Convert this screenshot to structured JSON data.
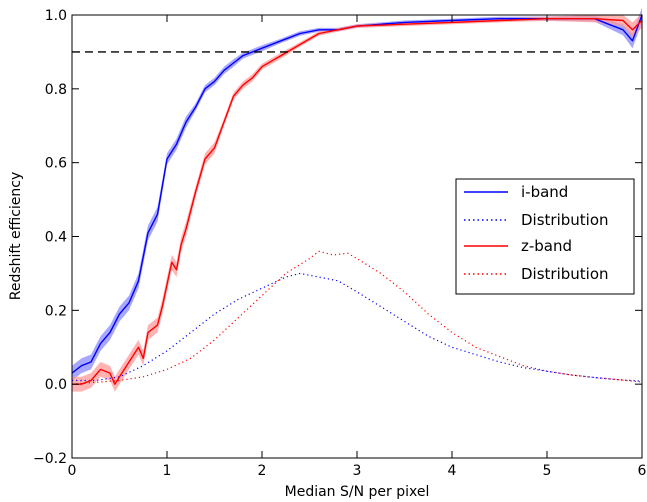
{
  "chart_data": {
    "type": "line",
    "xlabel": "Median S/N per pixel",
    "ylabel": "Redshift efficiency",
    "xlim": [
      0,
      6
    ],
    "ylim": [
      -0.2,
      1.0
    ],
    "x_ticks": [
      "0",
      "1",
      "2",
      "3",
      "4",
      "5",
      "6"
    ],
    "y_ticks": [
      "−0.2",
      "0.0",
      "0.2",
      "0.4",
      "0.6",
      "0.8",
      "1.0"
    ],
    "grid": false,
    "legend_placement": "center-right",
    "reference_line": {
      "y": 0.9,
      "style": "dashed",
      "color": "#000000"
    },
    "series": [
      {
        "name": "i-band",
        "style": "solid",
        "color": "#0000ff",
        "band_color": "#8a8aff",
        "x": [
          0.0,
          0.1,
          0.2,
          0.3,
          0.4,
          0.5,
          0.6,
          0.7,
          0.8,
          0.9,
          1.0,
          1.1,
          1.2,
          1.3,
          1.4,
          1.5,
          1.6,
          1.7,
          1.8,
          1.9,
          2.0,
          2.2,
          2.4,
          2.6,
          2.8,
          3.0,
          3.5,
          4.0,
          4.5,
          5.0,
          5.5,
          5.8,
          5.9,
          6.0
        ],
        "y": [
          0.03,
          0.05,
          0.06,
          0.11,
          0.14,
          0.19,
          0.22,
          0.28,
          0.41,
          0.46,
          0.61,
          0.65,
          0.71,
          0.75,
          0.8,
          0.82,
          0.85,
          0.87,
          0.89,
          0.9,
          0.91,
          0.93,
          0.95,
          0.96,
          0.96,
          0.97,
          0.98,
          0.985,
          0.99,
          0.99,
          0.99,
          0.96,
          0.93,
          1.0
        ],
        "err": [
          0.02,
          0.02,
          0.02,
          0.02,
          0.02,
          0.02,
          0.02,
          0.02,
          0.02,
          0.02,
          0.015,
          0.015,
          0.015,
          0.01,
          0.01,
          0.01,
          0.01,
          0.01,
          0.008,
          0.008,
          0.008,
          0.006,
          0.006,
          0.005,
          0.005,
          0.005,
          0.005,
          0.005,
          0.005,
          0.006,
          0.008,
          0.015,
          0.02,
          0.02
        ]
      },
      {
        "name": "Distribution",
        "style": "dotted",
        "color": "#0000ff",
        "x": [
          0.0,
          0.25,
          0.5,
          0.75,
          1.0,
          1.25,
          1.5,
          1.75,
          2.0,
          2.25,
          2.4,
          2.6,
          2.8,
          3.0,
          3.25,
          3.5,
          3.75,
          4.0,
          4.25,
          4.5,
          4.75,
          5.0,
          5.25,
          5.5,
          5.75,
          6.0
        ],
        "y": [
          0.01,
          0.01,
          0.02,
          0.05,
          0.09,
          0.14,
          0.19,
          0.23,
          0.26,
          0.29,
          0.3,
          0.29,
          0.28,
          0.25,
          0.21,
          0.17,
          0.13,
          0.1,
          0.08,
          0.06,
          0.045,
          0.035,
          0.025,
          0.018,
          0.012,
          0.008
        ]
      },
      {
        "name": "z-band",
        "style": "solid",
        "color": "#ff0000",
        "band_color": "#ff9a9a",
        "x": [
          0.0,
          0.1,
          0.2,
          0.3,
          0.4,
          0.45,
          0.5,
          0.6,
          0.7,
          0.75,
          0.8,
          0.85,
          0.9,
          0.95,
          1.0,
          1.05,
          1.1,
          1.15,
          1.2,
          1.3,
          1.4,
          1.5,
          1.6,
          1.7,
          1.8,
          1.9,
          2.0,
          2.2,
          2.4,
          2.6,
          2.8,
          3.0,
          3.5,
          4.0,
          4.5,
          5.0,
          5.5,
          5.8,
          5.9,
          6.0
        ],
        "y": [
          0.0,
          0.0,
          0.01,
          0.04,
          0.03,
          0.0,
          0.02,
          0.06,
          0.1,
          0.07,
          0.14,
          0.15,
          0.16,
          0.21,
          0.27,
          0.33,
          0.31,
          0.38,
          0.42,
          0.52,
          0.61,
          0.64,
          0.71,
          0.78,
          0.81,
          0.83,
          0.86,
          0.89,
          0.92,
          0.95,
          0.96,
          0.97,
          0.975,
          0.98,
          0.985,
          0.99,
          0.99,
          0.985,
          0.96,
          0.985
        ],
        "err": [
          0.02,
          0.02,
          0.02,
          0.02,
          0.02,
          0.02,
          0.02,
          0.02,
          0.02,
          0.02,
          0.02,
          0.02,
          0.02,
          0.02,
          0.02,
          0.02,
          0.02,
          0.02,
          0.02,
          0.015,
          0.015,
          0.015,
          0.01,
          0.01,
          0.01,
          0.01,
          0.008,
          0.008,
          0.006,
          0.006,
          0.005,
          0.005,
          0.005,
          0.005,
          0.005,
          0.006,
          0.01,
          0.015,
          0.02,
          0.02
        ]
      },
      {
        "name": "Distribution",
        "style": "dotted",
        "color": "#ff0000",
        "x": [
          0.0,
          0.25,
          0.5,
          0.75,
          1.0,
          1.25,
          1.5,
          1.75,
          2.0,
          2.25,
          2.5,
          2.6,
          2.75,
          2.9,
          3.0,
          3.25,
          3.5,
          3.75,
          4.0,
          4.25,
          4.5,
          4.75,
          5.0,
          5.25,
          5.5,
          5.75,
          6.0
        ],
        "y": [
          0.0,
          0.005,
          0.01,
          0.02,
          0.04,
          0.07,
          0.12,
          0.18,
          0.24,
          0.3,
          0.34,
          0.36,
          0.35,
          0.355,
          0.34,
          0.3,
          0.25,
          0.19,
          0.14,
          0.1,
          0.075,
          0.05,
          0.035,
          0.025,
          0.018,
          0.012,
          0.006
        ]
      }
    ]
  }
}
